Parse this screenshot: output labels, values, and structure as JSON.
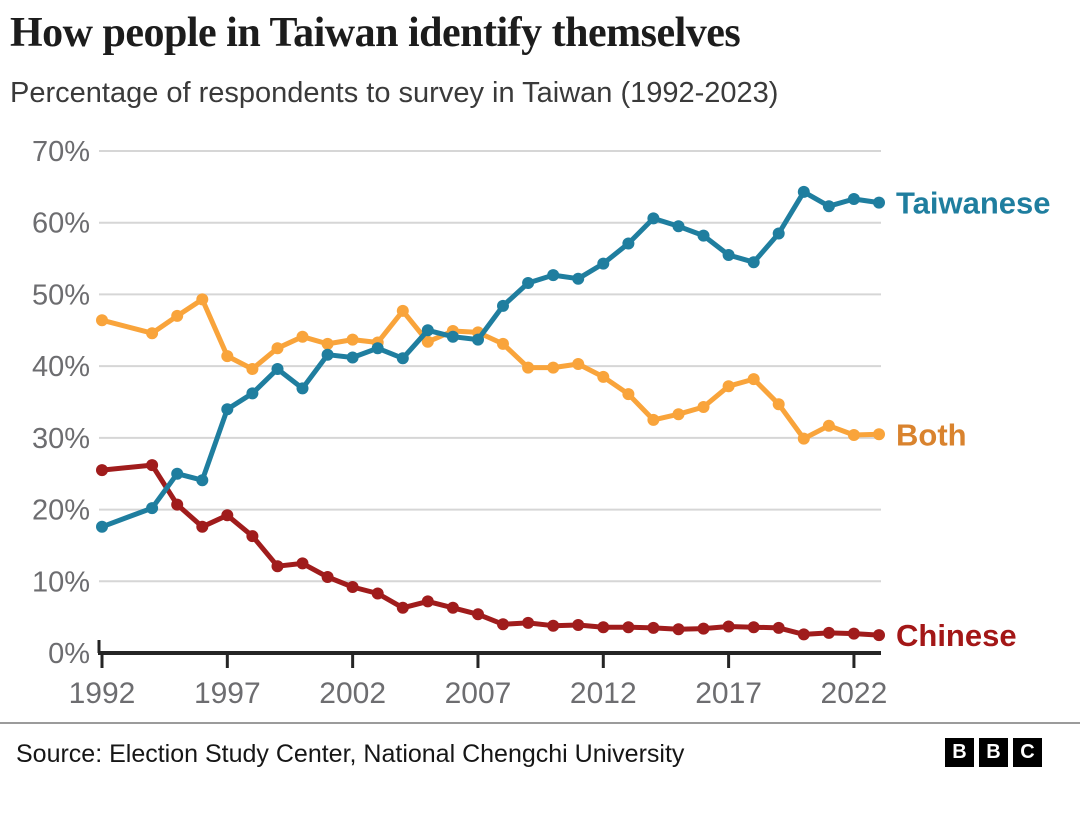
{
  "header": {
    "title": "How people in Taiwan identify themselves",
    "subtitle": "Percentage of respondents to survey in Taiwan (1992-2023)"
  },
  "footer": {
    "source": "Source: Election Study Center, National Chengchi University",
    "logo_blocks": [
      "B",
      "B",
      "C"
    ]
  },
  "colors": {
    "taiwanese_line": "#1f7e9f",
    "both_line": "#f9a43b",
    "both_label": "#d9832e",
    "chinese_line": "#a01c1c",
    "gridline": "#d6d6d6",
    "axis": "#252525",
    "tick_text": "#6d6d70"
  },
  "chart_data": {
    "type": "line",
    "title": "How people in Taiwan identify themselves",
    "subtitle": "Percentage of respondents to survey in Taiwan (1992-2023)",
    "xlabel": "",
    "ylabel": "",
    "grid": "horizontal",
    "ylim": [
      0,
      70
    ],
    "yticks": [
      0,
      10,
      20,
      30,
      40,
      50,
      60,
      70
    ],
    "ytick_suffix": "%",
    "xlim": [
      1992,
      2023
    ],
    "xticks": [
      1992,
      1997,
      2002,
      2007,
      2012,
      2017,
      2022
    ],
    "legend_position": "end-of-line",
    "x": [
      1992,
      1994,
      1995,
      1996,
      1997,
      1998,
      1999,
      2000,
      2001,
      2002,
      2003,
      2004,
      2005,
      2006,
      2007,
      2008,
      2009,
      2010,
      2011,
      2012,
      2013,
      2014,
      2015,
      2016,
      2017,
      2018,
      2019,
      2020,
      2021,
      2022,
      2023
    ],
    "series": [
      {
        "name": "Taiwanese",
        "color": "#1f7e9f",
        "label_color": "#1f7e9f",
        "values": [
          17.6,
          20.2,
          25.0,
          24.1,
          34.0,
          36.2,
          39.6,
          36.9,
          41.6,
          41.2,
          42.5,
          41.1,
          45.0,
          44.1,
          43.7,
          48.4,
          51.6,
          52.7,
          52.2,
          54.3,
          57.1,
          60.6,
          59.5,
          58.2,
          55.5,
          54.5,
          58.5,
          64.3,
          62.3,
          63.3,
          62.8
        ]
      },
      {
        "name": "Both",
        "color": "#f9a43b",
        "label_color": "#d9832e",
        "values": [
          46.4,
          44.6,
          47.0,
          49.3,
          41.4,
          39.6,
          42.5,
          44.1,
          43.1,
          43.7,
          43.3,
          47.7,
          43.4,
          44.9,
          44.7,
          43.1,
          39.8,
          39.8,
          40.3,
          38.5,
          36.1,
          32.5,
          33.3,
          34.3,
          37.2,
          38.2,
          34.7,
          29.9,
          31.7,
          30.4,
          30.5
        ]
      },
      {
        "name": "Chinese",
        "color": "#a01c1c",
        "label_color": "#a31717",
        "values": [
          25.5,
          26.2,
          20.7,
          17.6,
          19.2,
          16.3,
          12.1,
          12.5,
          10.6,
          9.2,
          8.3,
          6.3,
          7.2,
          6.3,
          5.4,
          4.0,
          4.2,
          3.8,
          3.9,
          3.6,
          3.6,
          3.5,
          3.3,
          3.4,
          3.7,
          3.6,
          3.5,
          2.6,
          2.8,
          2.7,
          2.5
        ]
      }
    ]
  }
}
